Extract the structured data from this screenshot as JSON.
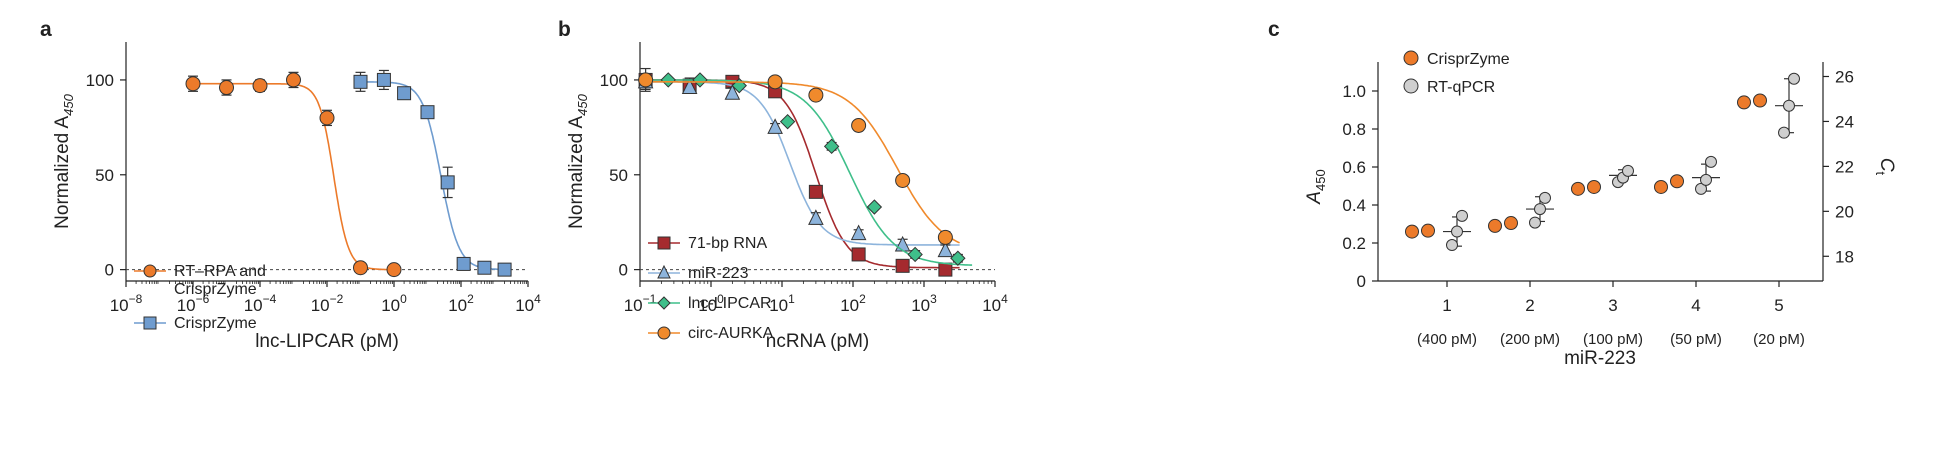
{
  "colors": {
    "orange": "#ec7a2a",
    "blue": "#6f9ccf",
    "darkred": "#a52a2e",
    "lightblue": "#8db4dc",
    "green": "#3fbf8a",
    "orange2": "#f08a2c",
    "grey": "#cfcfcf",
    "axis": "#222222"
  },
  "chart_data": [
    {
      "panel": "a",
      "type": "scatter",
      "title": "",
      "xlabel": "lnc-LIPCAR (pM)",
      "ylabel_main": "Normalized A",
      "ylabel_sub": "450",
      "xscale": "log",
      "xlim": [
        1e-08,
        10000.0
      ],
      "ylim": [
        -6,
        120
      ],
      "xticks": [
        {
          "base": "10",
          "exp": "−8",
          "v": 1e-08
        },
        {
          "base": "10",
          "exp": "−6",
          "v": 1e-06
        },
        {
          "base": "10",
          "exp": "−4",
          "v": 0.0001
        },
        {
          "base": "10",
          "exp": "−2",
          "v": 0.01
        },
        {
          "base": "10",
          "exp": "0",
          "v": 1
        },
        {
          "base": "10",
          "exp": "2",
          "v": 100
        },
        {
          "base": "10",
          "exp": "4",
          "v": 10000
        }
      ],
      "yticks": [
        0,
        50,
        100
      ],
      "zero_line": true,
      "legend": {
        "placement": "left"
      },
      "series": [
        {
          "name_lines": [
            "RT–RPA and",
            "CrisprZyme"
          ],
          "marker": "circle",
          "color_key": "orange",
          "curve": {
            "top": 98,
            "bottom": 0,
            "ec50": 0.016,
            "hill": 2.0
          },
          "points": [
            {
              "x": 1e-06,
              "y": 98,
              "err": 4
            },
            {
              "x": 1e-05,
              "y": 96,
              "err": 4
            },
            {
              "x": 0.0001,
              "y": 97,
              "err": 3
            },
            {
              "x": 0.001,
              "y": 100,
              "err": 4
            },
            {
              "x": 0.01,
              "y": 80,
              "err": 4
            },
            {
              "x": 0.1,
              "y": 1,
              "err": 1
            },
            {
              "x": 1,
              "y": 0,
              "err": 1
            }
          ]
        },
        {
          "name_lines": [
            "CrisprZyme"
          ],
          "marker": "square",
          "color_key": "blue",
          "curve": {
            "top": 99,
            "bottom": 0,
            "ec50": 25,
            "hill": 1.6
          },
          "points": [
            {
              "x": 0.1,
              "y": 99,
              "err": 5
            },
            {
              "x": 0.5,
              "y": 100,
              "err": 5
            },
            {
              "x": 2,
              "y": 93,
              "err": 3
            },
            {
              "x": 10,
              "y": 83,
              "err": 3
            },
            {
              "x": 40,
              "y": 46,
              "err": 8
            },
            {
              "x": 120,
              "y": 3,
              "err": 2
            },
            {
              "x": 500,
              "y": 1,
              "err": 1
            },
            {
              "x": 2000,
              "y": 0,
              "err": 1
            }
          ]
        }
      ]
    },
    {
      "panel": "b",
      "type": "scatter",
      "title": "",
      "xlabel": "ncRNA (pM)",
      "ylabel_main": "Normalized A",
      "ylabel_sub": "450",
      "xscale": "log",
      "xlim": [
        0.1,
        10000
      ],
      "ylim": [
        -6,
        120
      ],
      "xticks": [
        {
          "base": "10",
          "exp": "−1",
          "v": 0.1
        },
        {
          "base": "10",
          "exp": "0",
          "v": 1
        },
        {
          "base": "10",
          "exp": "1",
          "v": 10
        },
        {
          "base": "10",
          "exp": "2",
          "v": 100
        },
        {
          "base": "10",
          "exp": "3",
          "v": 1000
        },
        {
          "base": "10",
          "exp": "4",
          "v": 10000
        }
      ],
      "yticks": [
        0,
        50,
        100
      ],
      "zero_line": true,
      "legend": {
        "placement": "bottom-left"
      },
      "series": [
        {
          "name": "71-bp RNA",
          "marker": "square",
          "color_key": "darkred",
          "curve": {
            "top": 100,
            "bottom": 1,
            "ec50": 30,
            "hill": 2.0
          },
          "points": [
            {
              "x": 0.12,
              "y": 100,
              "err": 6
            },
            {
              "x": 0.5,
              "y": 97,
              "err": 4
            },
            {
              "x": 2,
              "y": 99,
              "err": 3
            },
            {
              "x": 8,
              "y": 94,
              "err": 2
            },
            {
              "x": 30,
              "y": 41,
              "err": 2
            },
            {
              "x": 120,
              "y": 8,
              "err": 1
            },
            {
              "x": 500,
              "y": 2,
              "err": 1
            },
            {
              "x": 2000,
              "y": 0,
              "err": 1
            }
          ]
        },
        {
          "name": "miR-223",
          "marker": "triangle",
          "color_key": "lightblue",
          "curve": {
            "top": 99,
            "bottom": 13,
            "ec50": 13,
            "hill": 2.0
          },
          "points": [
            {
              "x": 0.12,
              "y": 99,
              "err": 4
            },
            {
              "x": 0.5,
              "y": 96,
              "err": 3
            },
            {
              "x": 2,
              "y": 93,
              "err": 3
            },
            {
              "x": 8,
              "y": 75,
              "err": 2
            },
            {
              "x": 30,
              "y": 27,
              "err": 3
            },
            {
              "x": 120,
              "y": 19,
              "err": 2
            },
            {
              "x": 500,
              "y": 13,
              "err": 3
            },
            {
              "x": 2000,
              "y": 10,
              "err": 3
            }
          ]
        },
        {
          "name": "lnc-LIPCAR",
          "marker": "diamond",
          "color_key": "green",
          "curve": {
            "top": 100,
            "bottom": 2,
            "ec50": 90,
            "hill": 1.4
          },
          "points": [
            {
              "x": 0.12,
              "y": 100,
              "err": 2
            },
            {
              "x": 0.25,
              "y": 100,
              "err": 1
            },
            {
              "x": 0.7,
              "y": 100,
              "err": 1
            },
            {
              "x": 2.5,
              "y": 97,
              "err": 1
            },
            {
              "x": 12,
              "y": 78,
              "err": 1
            },
            {
              "x": 50,
              "y": 65,
              "err": 2
            },
            {
              "x": 200,
              "y": 33,
              "err": 1
            },
            {
              "x": 750,
              "y": 8,
              "err": 2
            },
            {
              "x": 3000,
              "y": 6,
              "err": 2
            }
          ]
        },
        {
          "name": "circ-AURKA",
          "marker": "circle",
          "color_key": "orange2",
          "curve": {
            "top": 99,
            "bottom": 8,
            "ec50": 420,
            "hill": 1.3
          },
          "points": [
            {
              "x": 0.12,
              "y": 100,
              "err": 1
            },
            {
              "x": 8,
              "y": 99,
              "err": 2
            },
            {
              "x": 30,
              "y": 92,
              "err": 1
            },
            {
              "x": 120,
              "y": 76,
              "err": 2
            },
            {
              "x": 500,
              "y": 47,
              "err": 2
            },
            {
              "x": 2000,
              "y": 17,
              "err": 3
            }
          ]
        }
      ]
    },
    {
      "panel": "c",
      "type": "scatter",
      "title": "",
      "xlabel": "miR-223",
      "ylabel_left_main": "A",
      "ylabel_left_sub": "450",
      "ylabel_right_main": "C",
      "ylabel_right_sub": "t",
      "ylim_left": [
        0,
        1.1
      ],
      "ylim_right": [
        16.9,
        26.2
      ],
      "yticks_left": [
        "0",
        "0.2",
        "0.4",
        "0.6",
        "0.8",
        "1.0"
      ],
      "yticks_right": [
        18,
        20,
        22,
        24,
        26
      ],
      "legend": {
        "placement": "top-left"
      },
      "categories": [
        {
          "label": "1",
          "sub": "(400 pM)"
        },
        {
          "label": "2",
          "sub": "(200 pM)"
        },
        {
          "label": "3",
          "sub": "(100 pM)"
        },
        {
          "label": "4",
          "sub": "(50 pM)"
        },
        {
          "label": "5",
          "sub": "(20 pM)"
        }
      ],
      "crisprzyme": {
        "name": "CrisprZyme",
        "values": [
          [
            0.26,
            0.265
          ],
          [
            0.29,
            0.305
          ],
          [
            0.485,
            0.495
          ],
          [
            0.495,
            0.525
          ],
          [
            0.94,
            0.95
          ]
        ]
      },
      "rtqpcr": {
        "name": "RT-qPCR",
        "values": [
          [
            18.5,
            19.1,
            19.8
          ],
          [
            19.5,
            20.1,
            20.6
          ],
          [
            21.3,
            21.5,
            21.8
          ],
          [
            21.0,
            21.4,
            22.2
          ],
          [
            23.5,
            24.7,
            25.9
          ]
        ],
        "mean": [
          19.1,
          20.1,
          21.6,
          21.5,
          24.7
        ],
        "sd": [
          0.65,
          0.55,
          0.25,
          0.6,
          1.2
        ]
      }
    }
  ]
}
